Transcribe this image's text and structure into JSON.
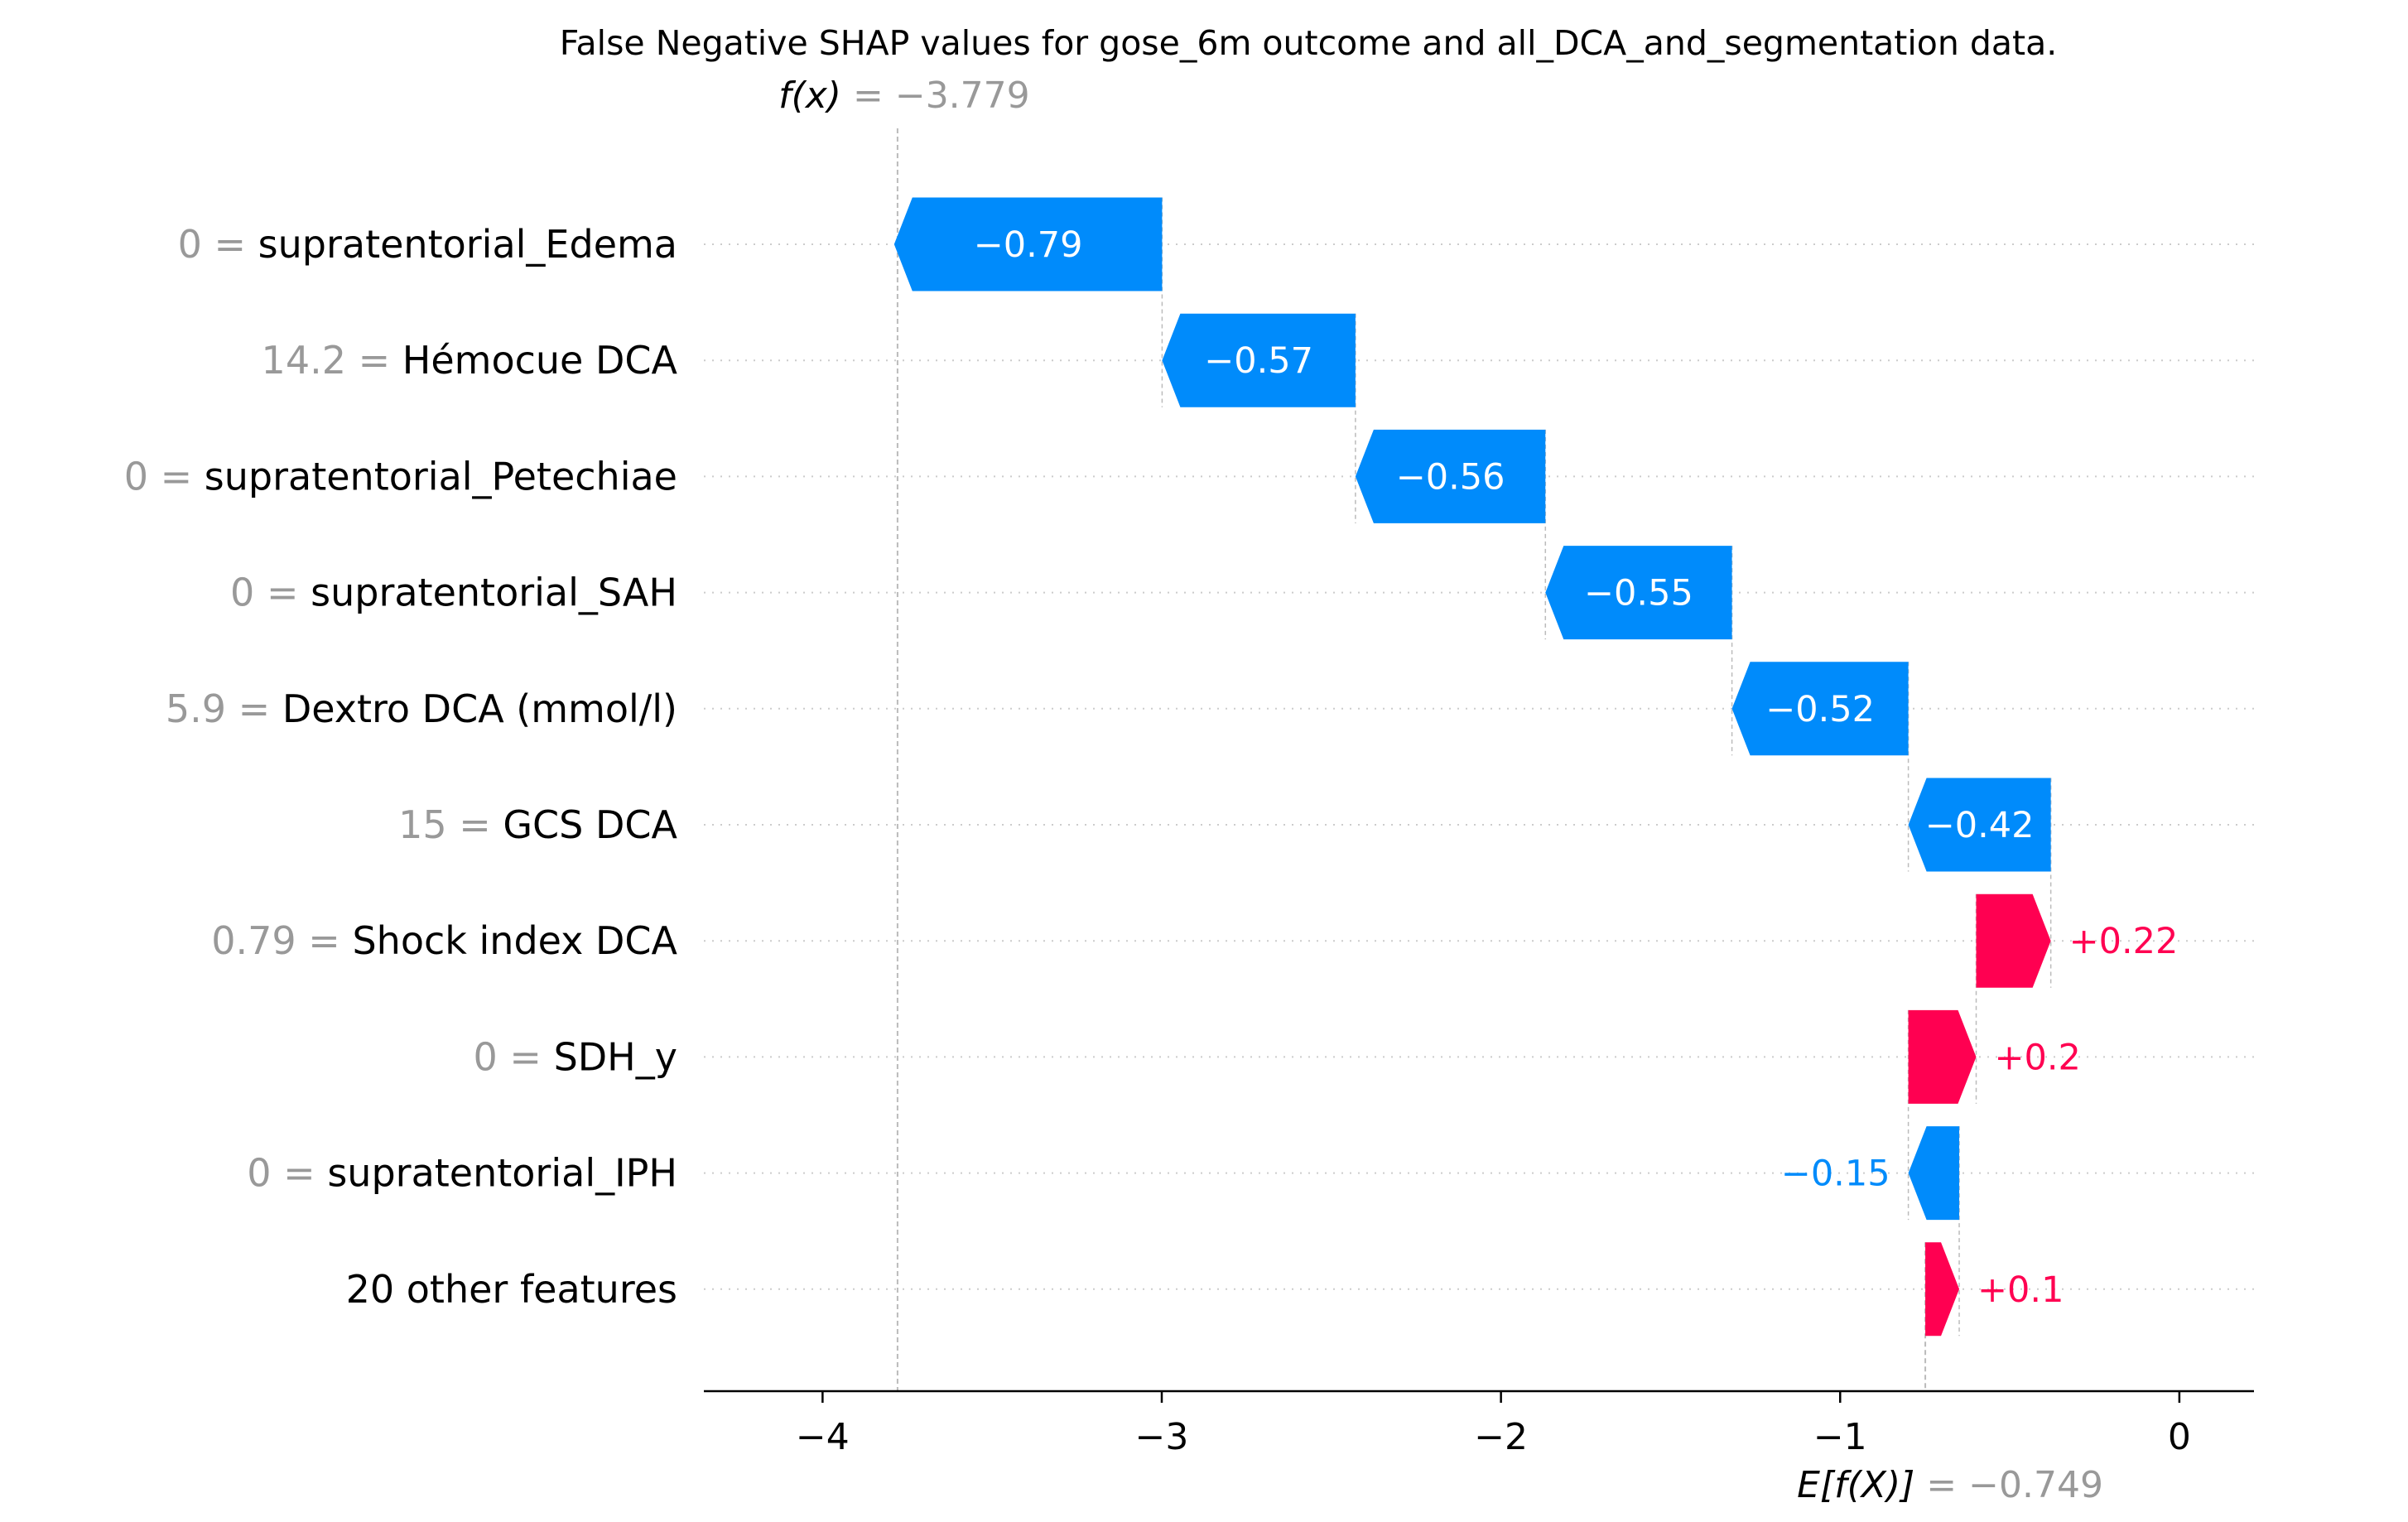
{
  "chart_data": {
    "type": "bar",
    "subtype": "waterfall",
    "title": "False Negative SHAP values for gose_6m outcome and all_DCA_and_segmentation data.",
    "fx": {
      "value": -3.779,
      "label_fn": "f(x)",
      "label_value": " = −3.779"
    },
    "efx": {
      "value": -0.749,
      "label_fn": "E[f(X)]",
      "label_value": " = −0.749"
    },
    "xlim": [
      -4.35,
      0.22
    ],
    "xticks": [
      -4,
      -3,
      -2,
      -1,
      0
    ],
    "xtick_labels": [
      "−4",
      "−3",
      "−2",
      "−1",
      "0"
    ],
    "grid": "dotted horizontal row lines",
    "colors": {
      "positive": "#ff0051",
      "negative": "#008bfb",
      "gray_text": "#999999",
      "guide": "#bbbbbb"
    },
    "features": [
      {
        "value": "0",
        "name": "supratentorial_Edema",
        "shap": -0.79,
        "label": "−0.79",
        "label_inside": true
      },
      {
        "value": "14.2",
        "name": "Hémocue DCA",
        "shap": -0.57,
        "label": "−0.57",
        "label_inside": true
      },
      {
        "value": "0",
        "name": "supratentorial_Petechiae",
        "shap": -0.56,
        "label": "−0.56",
        "label_inside": true
      },
      {
        "value": "0",
        "name": "supratentorial_SAH",
        "shap": -0.55,
        "label": "−0.55",
        "label_inside": true
      },
      {
        "value": "5.9",
        "name": "Dextro DCA (mmol/l)",
        "shap": -0.52,
        "label": "−0.52",
        "label_inside": true
      },
      {
        "value": "15",
        "name": "GCS DCA",
        "shap": -0.42,
        "label": "−0.42",
        "label_inside": true
      },
      {
        "value": "0.79",
        "name": "Shock index DCA",
        "shap": 0.22,
        "label": "+0.22",
        "label_inside": false
      },
      {
        "value": "0",
        "name": "SDH_y",
        "shap": 0.2,
        "label": "+0.2",
        "label_inside": false
      },
      {
        "value": "0",
        "name": "supratentorial_IPH",
        "shap": -0.15,
        "label": "−0.15",
        "label_inside": false
      },
      {
        "value": "",
        "name": "20 other features",
        "shap": 0.1,
        "label": "+0.1",
        "label_inside": false
      }
    ]
  }
}
